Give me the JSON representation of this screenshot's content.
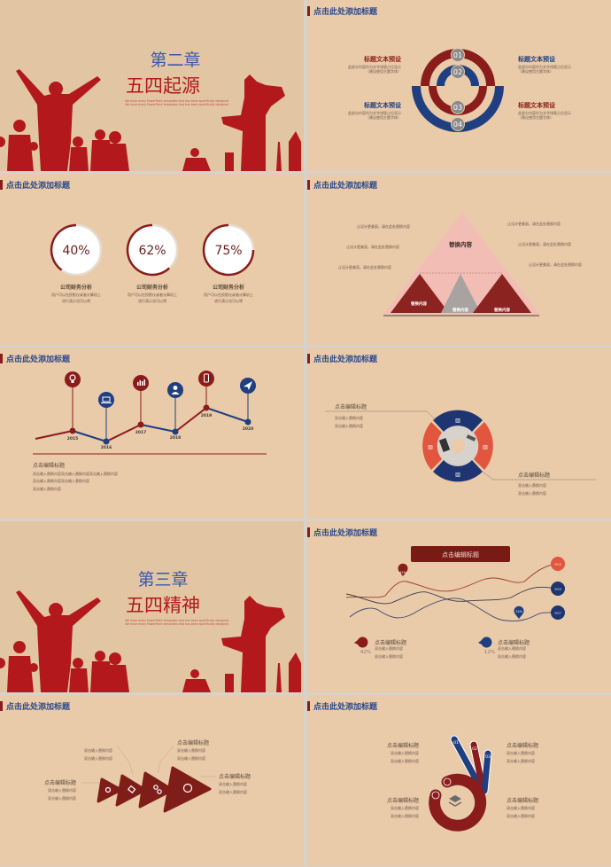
{
  "header_title": "点击此处添加标题",
  "colors": {
    "red": "#8b1c1c",
    "blue": "#1f3f80",
    "orange": "#e2553f",
    "beige": "#e9caa9",
    "title_blue": "#2d4a8a"
  },
  "cover1": {
    "chapter": "第二章",
    "title": "五四起源",
    "subtitle_lines": [
      "We have many PowerPoint templates that has been specifically designed",
      "We have many PowerPoint templates that has been specifically designed"
    ]
  },
  "cover2": {
    "chapter": "第三章",
    "title": "五四精神",
    "subtitle_lines": [
      "We have many PowerPoint templates that has been specifically designed",
      "We have many PowerPoint templates that has been specifically designed"
    ]
  },
  "rings": {
    "nums": [
      "01",
      "02",
      "03",
      "04"
    ],
    "blocks": [
      {
        "title": "标题文本预设",
        "desc1": "此部分内容作为文字排版占位显示",
        "desc2": "（建议使用主题字体）"
      },
      {
        "title": "标题文本预设",
        "desc1": "此部分内容作为文字排版占位显示",
        "desc2": "（建议使用主题字体）"
      },
      {
        "title": "标题文本预设",
        "desc1": "此部分内容作为文字排版占位显示",
        "desc2": "（建议使用主题字体）"
      },
      {
        "title": "标题文本预设",
        "desc1": "此部分内容作为文字排版占位显示",
        "desc2": "（建议使用主题字体）"
      }
    ]
  },
  "donuts": {
    "items": [
      {
        "value": "40%",
        "percent": 40,
        "title": "公司财务分析",
        "desc1": "用户可以在投影仪或者计算机上",
        "desc2": "进行演示也可以将"
      },
      {
        "value": "62%",
        "percent": 62,
        "title": "公司财务分析",
        "desc1": "用户可以在投影仪或者计算机上",
        "desc2": "进行演示也可以将"
      },
      {
        "value": "75%",
        "percent": 75,
        "title": "公司财务分析",
        "desc1": "用户可以在投影仪或者计算机上",
        "desc2": "进行演示也可以将"
      }
    ]
  },
  "pyramid": {
    "top_label": "替换内容",
    "bottom_labels": [
      "替换内容",
      "替换内容",
      "替换内容"
    ],
    "notes_left": [
      "让设计更美丽，请在此处替换内容",
      "让设计更美丽，请在此处替换内容",
      "让设计更美丽，请在此处替换内容"
    ],
    "notes_right": [
      "让设计更美丽，请在此处替换内容",
      "让设计更美丽，请在此处替换内容",
      "让设计更美丽，请在此处替换内容"
    ]
  },
  "timeline": {
    "years": [
      "2015",
      "2016",
      "2017",
      "2018",
      "2019",
      "2020"
    ],
    "icons": [
      "lightbulb-icon",
      "laptop-icon",
      "bar-chart-icon",
      "user-icon",
      "phone-icon",
      "paper-plane-icon"
    ],
    "title": "点击编辑标题",
    "lines": [
      "双击输入替换内容双击输入替换内容双击输入替换内容",
      "双击输入替换内容双击输入替换内容",
      "双击输入替换内容"
    ]
  },
  "ring_photo": {
    "blocks": [
      {
        "title": "点击编辑标题",
        "lines": [
          "双击输入替换内容",
          "双击输入替换内容"
        ]
      },
      {
        "title": "点击编辑标题",
        "lines": [
          "双击输入替换内容",
          "双击输入替换内容"
        ]
      }
    ]
  },
  "curves": {
    "banner": "点击编辑标题",
    "callouts": [
      "42%",
      "12%"
    ],
    "end_labels": [
      "2019",
      "2018",
      "2017"
    ],
    "blocks": [
      {
        "value": "42%",
        "title": "点击编辑标题",
        "lines": [
          "双击输入替换内容",
          "双击输入替换内容"
        ]
      },
      {
        "value": "12%",
        "title": "点击编辑标题",
        "lines": [
          "双击输入替换内容",
          "双击输入替换内容"
        ]
      }
    ]
  },
  "arrows": {
    "blocks": [
      {
        "title": "点击编辑标题",
        "lines": [
          "双击输入替换内容",
          "双击输入替换内容"
        ]
      },
      {
        "lines": [
          "双击输入替换内容",
          "双击输入替换内容"
        ]
      },
      {
        "title": "点击编辑标题",
        "lines": [
          "双击输入替换内容",
          "双击输入替换内容"
        ]
      },
      {
        "title": "点击编辑标题",
        "lines": [
          "双击输入替换内容",
          "双击输入替换内容"
        ]
      }
    ]
  },
  "hand": {
    "nums": [
      "01",
      "02",
      "03"
    ],
    "blocks": [
      {
        "title": "点击编辑标题",
        "lines": [
          "双击输入替换内容",
          "双击输入替换内容"
        ]
      },
      {
        "title": "点击编辑标题",
        "lines": [
          "双击输入替换内容",
          "双击输入替换内容"
        ]
      },
      {
        "title": "点击编辑标题",
        "lines": [
          "双击输入替换内容",
          "双击输入替换内容"
        ]
      },
      {
        "title": "点击编辑标题",
        "lines": [
          "双击输入替换内容",
          "双击输入替换内容"
        ]
      }
    ]
  }
}
